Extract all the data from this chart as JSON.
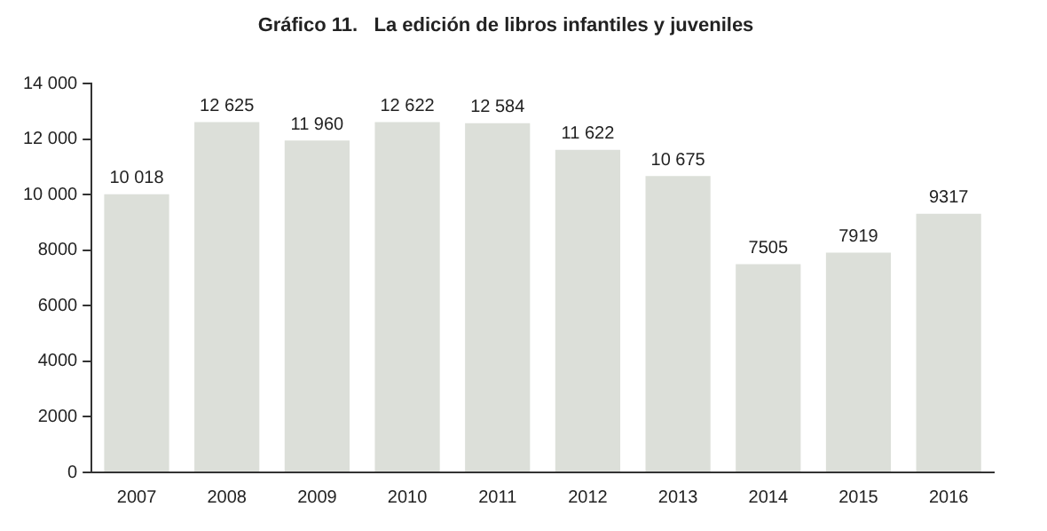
{
  "chart_data": {
    "type": "bar",
    "title": "Gráfico 11.   La edición de libros infantiles y juveniles",
    "categories": [
      "2007",
      "2008",
      "2009",
      "2010",
      "2011",
      "2012",
      "2013",
      "2014",
      "2015",
      "2016"
    ],
    "values": [
      10018,
      12625,
      11960,
      12622,
      12584,
      11622,
      10675,
      7505,
      7919,
      9317
    ],
    "value_labels": [
      "10 018",
      "12 625",
      "11 960",
      "12 622",
      "12 584",
      "11 622",
      "10 675",
      "7505",
      "7919",
      "9317"
    ],
    "color": "#dcdfd9",
    "ylim": [
      0,
      14000
    ],
    "yticks": [
      0,
      2000,
      4000,
      6000,
      {
        "value": 8000,
        "label": "8000"
      },
      {
        "value": 10000,
        "label": "10 000"
      },
      {
        "value": 12000,
        "label": "12 000"
      },
      {
        "value": 14000,
        "label": "14 000"
      }
    ],
    "grid": false
  }
}
